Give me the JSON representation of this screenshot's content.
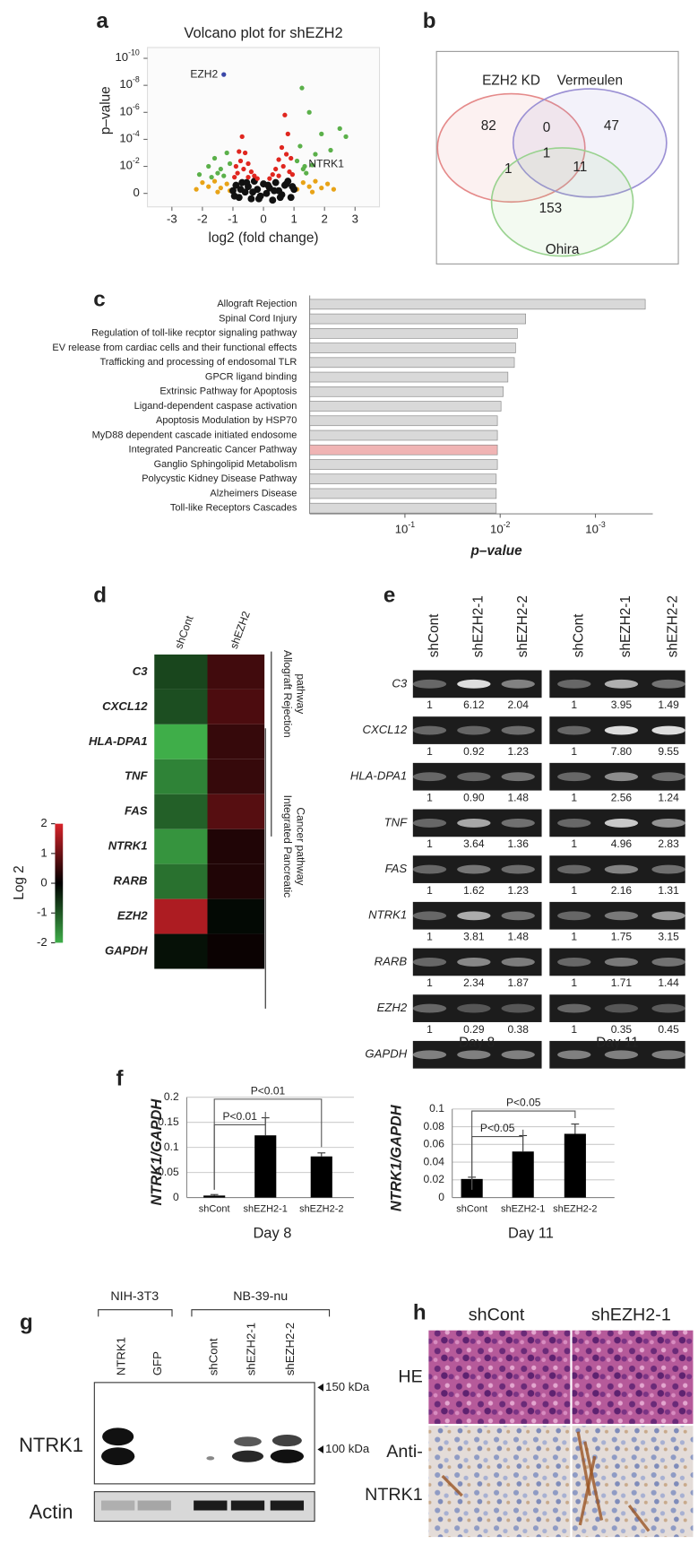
{
  "panel_labels": [
    "a",
    "b",
    "c",
    "d",
    "e",
    "f",
    "g",
    "h"
  ],
  "chart_data": [
    {
      "type": "scatter",
      "title": "Volcano plot for shEZH2",
      "xlabel": "log2 (fold change)",
      "ylabel": "p–value",
      "xlim": [
        -3.8,
        3.8
      ],
      "xticks": [
        -3,
        -2,
        -1,
        0,
        1,
        2,
        3
      ],
      "ylim": [
        -1,
        10.8
      ],
      "yticks": [
        {
          "value": 10,
          "label": "10",
          "sup": "-10"
        },
        {
          "value": 8,
          "label": "10",
          "sup": "-8"
        },
        {
          "value": 6,
          "label": "10",
          "sup": "-6"
        },
        {
          "value": 4,
          "label": "10",
          "sup": "-4"
        },
        {
          "value": 2,
          "label": "10",
          "sup": "-2"
        },
        0
      ],
      "series": [
        {
          "color": "#e8a317",
          "x": [
            -2.2,
            -2.0,
            -1.8,
            -1.6,
            -1.4,
            -1.2,
            -1.1,
            1.1,
            1.3,
            1.5,
            1.7,
            1.9,
            2.1,
            2.3,
            -1.5,
            1.6
          ],
          "values": [
            0.3,
            0.8,
            0.5,
            0.9,
            0.4,
            0.7,
            0.2,
            0.3,
            0.8,
            0.5,
            0.9,
            0.4,
            0.7,
            0.3,
            0.1,
            0.1
          ]
        },
        {
          "color": "#5bb04a",
          "x": [
            -2.1,
            -1.8,
            -1.6,
            -1.4,
            -1.2,
            -1.1,
            -1.3,
            -1.5,
            1.1,
            1.2,
            1.3,
            1.5,
            1.7,
            1.9,
            2.2,
            2.5,
            2.7,
            1.4,
            1.6,
            -1.7,
            1.26
          ],
          "values": [
            1.4,
            2.0,
            2.6,
            1.8,
            3.0,
            2.2,
            1.3,
            1.5,
            2.4,
            3.5,
            1.8,
            6.0,
            2.9,
            4.4,
            3.2,
            4.8,
            4.2,
            1.5,
            2.1,
            1.2,
            7.8
          ]
        },
        {
          "color": "#111111",
          "x": [
            -1,
            -0.9,
            -0.8,
            -0.7,
            -0.6,
            -0.5,
            -0.4,
            -0.3,
            -0.2,
            -0.1,
            0,
            0.1,
            0.2,
            0.3,
            0.4,
            0.5,
            0.6,
            0.7,
            0.8,
            0.9,
            1,
            -0.95,
            -0.75,
            -0.55,
            -0.35,
            -0.15,
            0.15,
            0.35,
            0.55,
            0.75,
            0.95
          ],
          "values": [
            0.2,
            0.6,
            -0.3,
            0.8,
            0.1,
            0.5,
            -0.4,
            0.9,
            0.3,
            -0.2,
            0.7,
            0,
            0.4,
            -0.5,
            0.8,
            0.2,
            -0.1,
            0.6,
            0.9,
            -0.3,
            0.3,
            -0.2,
            0.3,
            0.8,
            0.1,
            -0.4,
            0.6,
            0.2,
            -0.3,
            0.7,
            0.5
          ]
        },
        {
          "color": "#e0261f",
          "x": [
            -0.9,
            -0.8,
            -0.7,
            -0.6,
            -0.5,
            -0.4,
            -0.3,
            -0.2,
            0.2,
            0.3,
            0.4,
            0.5,
            0.6,
            0.7,
            0.8,
            0.9,
            -0.85,
            -0.75,
            -0.65,
            0.65,
            0.75,
            0.85,
            -0.5,
            0.5,
            -0.95,
            0.95
          ],
          "values": [
            2.0,
            3.1,
            4.2,
            3.0,
            2.2,
            1.6,
            1.3,
            1.1,
            1.1,
            1.4,
            1.8,
            2.5,
            3.4,
            5.8,
            4.4,
            2.6,
            1.5,
            2.4,
            1.8,
            2.0,
            2.9,
            1.6,
            1.2,
            1.3,
            1.2,
            1.4
          ]
        }
      ],
      "annotations": [
        {
          "text": "EZH2",
          "x": -1.3,
          "y": 8.8,
          "color": "#3a47a8"
        },
        {
          "text": "NTRK1",
          "x": 1.35,
          "y": 2.0,
          "color": "#5bb04a"
        }
      ]
    },
    {
      "type": "hbar",
      "xlabel": "p–value",
      "xscale": "log",
      "xlim": [
        1,
        0.00025
      ],
      "xticks": [
        {
          "value": 0.1,
          "label": "10",
          "sup": "-1"
        },
        {
          "value": 0.01,
          "label": "10",
          "sup": "-2"
        },
        {
          "value": 0.001,
          "label": "10",
          "sup": "-3"
        }
      ],
      "categories": [
        "Allograft Rejection",
        "Spinal Cord Injury",
        "Regulation of toll-like recptor signaling pathway",
        "EV release from cardiac cells and their functional effects",
        "Trafficking and processing of endosomal TLR",
        "GPCR ligand binding",
        "Extrinsic Pathway for Apoptosis",
        "Ligand-dependent caspase activation",
        "Apoptosis Modulation by HSP70",
        "MyD88 dependent cascade initiated endosome",
        "Integrated Pancreatic Cancer Pathway",
        "Ganglio Sphingolipid Metabolism",
        "Polycystic Kidney Disease Pathway",
        "Alzheimers Disease",
        "Toll-like Receptors Cascades"
      ],
      "values": [
        0.0003,
        0.0054,
        0.0066,
        0.0069,
        0.0071,
        0.0083,
        0.0093,
        0.0098,
        0.0107,
        0.0107,
        0.0107,
        0.0107,
        0.011,
        0.011,
        0.011
      ],
      "color": "#d9d9d9",
      "highlight_category": "Integrated Pancreatic Cancer Pathway",
      "highlight_color": "#f0b4b4",
      "highlight_text_color": "#e02020"
    },
    {
      "type": "heatmap",
      "columns": [
        "shCont",
        "shEZH2"
      ],
      "rows": [
        "C3",
        "CXCL12",
        "HLA-DPA1",
        "TNF",
        "FAS",
        "NTRK1",
        "RARB",
        "EZH2",
        "GAPDH"
      ],
      "values": [
        [
          -0.8,
          0.6
        ],
        [
          -0.9,
          0.7
        ],
        [
          -2,
          0.5
        ],
        [
          -1.5,
          0.5
        ],
        [
          -1.1,
          0.8
        ],
        [
          -1.7,
          0.3
        ],
        [
          -1.3,
          0.3
        ],
        [
          1.6,
          -0.1
        ],
        [
          -0.2,
          0.1
        ]
      ],
      "zlim": [
        -2,
        2
      ],
      "zticks": [
        2,
        1,
        0,
        -1,
        -2
      ],
      "zlabel": "Log 2",
      "colors": {
        "low": "#3fae49",
        "mid": "#000000",
        "high": "#d8232a"
      },
      "groups": [
        {
          "label": [
            "Allograft Rejection",
            "pathway"
          ]
        },
        {
          "label": [
            "Integrated Pancreatic",
            "Cancer pathway"
          ]
        }
      ]
    },
    {
      "type": "bar",
      "xlabel": "Day 8",
      "ylabel": "NTRK1/GAPDH",
      "categories": [
        "shCont",
        "shEZH2-1",
        "shEZH2-2"
      ],
      "values": [
        0.004,
        0.124,
        0.082
      ],
      "errors": [
        0.002,
        0.035,
        0.007
      ],
      "ylim": [
        0,
        0.2
      ],
      "yticks": [
        0,
        0.05,
        0.1,
        0.15,
        0.2
      ],
      "color": "#000000",
      "grid": true,
      "comparisons": [
        {
          "label": "P<0.01",
          "pair": [
            "shCont",
            "shEZH2-1"
          ]
        },
        {
          "label": "P<0.01",
          "pair": [
            "shCont",
            "shEZH2-2"
          ]
        }
      ]
    },
    {
      "type": "bar",
      "xlabel": "Day 11",
      "ylabel": "NTRK1/GAPDH",
      "categories": [
        "shCont",
        "shEZH2-1",
        "shEZH2-2"
      ],
      "values": [
        0.021,
        0.052,
        0.072
      ],
      "errors": [
        0.002,
        0.018,
        0.011
      ],
      "ylim": [
        0,
        0.1
      ],
      "yticks": [
        0,
        0.02,
        0.04,
        0.06,
        0.08,
        0.1
      ],
      "color": "#000000",
      "grid": true,
      "comparisons": [
        {
          "label": "P<0.05",
          "pair": [
            "shCont",
            "shEZH2-1"
          ]
        },
        {
          "label": "P<0.05",
          "pair": [
            "shCont",
            "shEZH2-2"
          ]
        }
      ]
    }
  ],
  "venn": {
    "sets": [
      {
        "name": "EZH2 KD",
        "color": "#e58a8a"
      },
      {
        "name": "Vermeulen",
        "color": "#9b90d4"
      },
      {
        "name": "Ohira",
        "color": "#99d28f"
      }
    ],
    "counts": [
      "82",
      "0",
      "47",
      "1",
      "1",
      "11",
      "153"
    ]
  },
  "gel": {
    "lanes": [
      "shCont",
      "shEZH2-1",
      "shEZH2-2"
    ],
    "days": [
      "Day 8",
      "Day 11"
    ],
    "genes": [
      {
        "name": "C3",
        "day8": [
          "1",
          "6.12",
          "2.04"
        ],
        "day11": [
          "1",
          "3.95",
          "1.49"
        ]
      },
      {
        "name": "CXCL12",
        "day8": [
          "1",
          "0.92",
          "1.23"
        ],
        "day11": [
          "1",
          "7.80",
          "9.55"
        ]
      },
      {
        "name": "HLA-DPA1",
        "day8": [
          "1",
          "0.90",
          "1.48"
        ],
        "day11": [
          "1",
          "2.56",
          "1.24"
        ]
      },
      {
        "name": "TNF",
        "day8": [
          "1",
          "3.64",
          "1.36"
        ],
        "day11": [
          "1",
          "4.96",
          "2.83"
        ]
      },
      {
        "name": "FAS",
        "day8": [
          "1",
          "1.62",
          "1.23"
        ],
        "day11": [
          "1",
          "2.16",
          "1.31"
        ]
      },
      {
        "name": "NTRK1",
        "day8": [
          "1",
          "3.81",
          "1.48"
        ],
        "day11": [
          "1",
          "1.75",
          "3.15"
        ]
      },
      {
        "name": "RARB",
        "day8": [
          "1",
          "2.34",
          "1.87"
        ],
        "day11": [
          "1",
          "1.71",
          "1.44"
        ]
      },
      {
        "name": "EZH2",
        "day8": [
          "1",
          "0.29",
          "0.38"
        ],
        "day11": [
          "1",
          "0.35",
          "0.45"
        ]
      },
      {
        "name": "GAPDH"
      }
    ]
  },
  "western": {
    "groups": [
      "NIH-3T3",
      "NB-39-nu"
    ],
    "lanes": [
      "NTRK1",
      "GFP",
      "shCont",
      "shEZH2-1",
      "shEZH2-2"
    ],
    "markers": [
      "150 kDa",
      "100 kDa"
    ],
    "rows": [
      "NTRK1",
      "Actin"
    ]
  },
  "histology": {
    "columns": [
      "shCont",
      "shEZH2-1"
    ],
    "rows": [
      [
        "HE"
      ],
      [
        "Anti-",
        "NTRK1"
      ]
    ]
  }
}
